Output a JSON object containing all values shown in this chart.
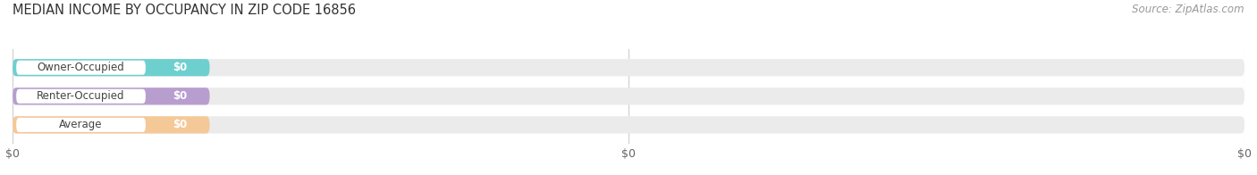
{
  "title": "MEDIAN INCOME BY OCCUPANCY IN ZIP CODE 16856",
  "source_text": "Source: ZipAtlas.com",
  "categories": [
    "Owner-Occupied",
    "Renter-Occupied",
    "Average"
  ],
  "values": [
    0,
    0,
    0
  ],
  "bar_colors": [
    "#6ecfcf",
    "#b89ece",
    "#f5c898"
  ],
  "bar_bg_color": "#ebebeb",
  "value_labels": [
    "$0",
    "$0",
    "$0"
  ],
  "x_tick_labels": [
    "$0",
    "$0",
    "$0"
  ],
  "title_fontsize": 10.5,
  "source_fontsize": 8.5,
  "tick_fontsize": 9,
  "bar_label_fontsize": 8.5,
  "cat_label_fontsize": 8.5,
  "background_color": "#ffffff"
}
